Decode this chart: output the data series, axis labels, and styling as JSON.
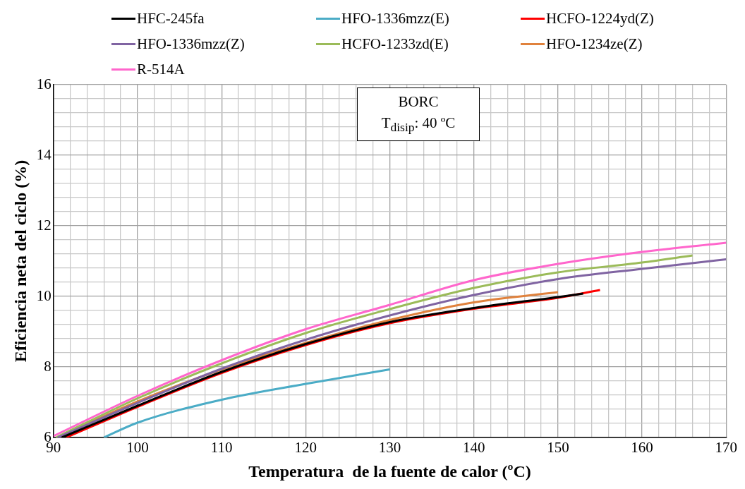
{
  "chart_data": {
    "type": "line",
    "xlabel": "Temperatura  de la fuente de calor (ºC)",
    "ylabel": "Eficiencia neta del ciclo (%)",
    "annotations": [
      "BORC",
      "T$_{disip}$:  40 ºC"
    ],
    "xlim": [
      90,
      170
    ],
    "ylim": [
      6,
      16
    ],
    "xticks": [
      90,
      {
        "value": 92,
        "label": null
      },
      {
        "value": 94,
        "label": null
      },
      {
        "value": 96,
        "label": null
      },
      {
        "value": 98,
        "label": null
      },
      100,
      {
        "value": 102,
        "label": null
      },
      {
        "value": 104,
        "label": null
      },
      {
        "value": 106,
        "label": null
      },
      {
        "value": 108,
        "label": null
      },
      110,
      {
        "value": 112,
        "label": null
      },
      {
        "value": 114,
        "label": null
      },
      {
        "value": 116,
        "label": null
      },
      {
        "value": 118,
        "label": null
      },
      120,
      {
        "value": 122,
        "label": null
      },
      {
        "value": 124,
        "label": null
      },
      {
        "value": 126,
        "label": null
      },
      {
        "value": 128,
        "label": null
      },
      130,
      {
        "value": 132,
        "label": null
      },
      {
        "value": 134,
        "label": null
      },
      {
        "value": 136,
        "label": null
      },
      {
        "value": 138,
        "label": null
      },
      140,
      {
        "value": 142,
        "label": null
      },
      {
        "value": 144,
        "label": null
      },
      {
        "value": 146,
        "label": null
      },
      {
        "value": 148,
        "label": null
      },
      150,
      {
        "value": 152,
        "label": null
      },
      {
        "value": 154,
        "label": null
      },
      {
        "value": 156,
        "label": null
      },
      {
        "value": 158,
        "label": null
      },
      160,
      {
        "value": 162,
        "label": null
      },
      {
        "value": 164,
        "label": null
      },
      {
        "value": 166,
        "label": null
      },
      {
        "value": 168,
        "label": null
      },
      170
    ],
    "yticks": [
      6,
      {
        "value": 6.4,
        "label": null
      },
      {
        "value": 6.8,
        "label": null
      },
      {
        "value": 7.2,
        "label": null
      },
      {
        "value": 7.6,
        "label": null
      },
      8,
      {
        "value": 8.4,
        "label": null
      },
      {
        "value": 8.8,
        "label": null
      },
      {
        "value": 9.2,
        "label": null
      },
      {
        "value": 9.6,
        "label": null
      },
      10,
      {
        "value": 10.4,
        "label": null
      },
      {
        "value": 10.8,
        "label": null
      },
      {
        "value": 11.2,
        "label": null
      },
      {
        "value": 11.6,
        "label": null
      },
      12,
      {
        "value": 12.4,
        "label": null
      },
      {
        "value": 12.8,
        "label": null
      },
      {
        "value": 13.2,
        "label": null
      },
      {
        "value": 13.6,
        "label": null
      },
      14,
      {
        "value": 14.4,
        "label": null
      },
      {
        "value": 14.8,
        "label": null
      },
      {
        "value": 15.2,
        "label": null
      },
      {
        "value": 15.6,
        "label": null
      },
      16
    ],
    "grid": true,
    "legend": "top",
    "marker": "none",
    "line_style": "solid",
    "series": [
      {
        "name": "HFC-245fa",
        "color": "#000000",
        "x": [
          91,
          100,
          110,
          120,
          130,
          140,
          150,
          153
        ],
        "values": [
          6.0,
          6.9,
          7.86,
          8.65,
          9.27,
          9.67,
          9.98,
          10.08
        ]
      },
      {
        "name": "HFO-1336mzz(E)",
        "color": "#4bacc6",
        "x": [
          96,
          100,
          110,
          120,
          130
        ],
        "values": [
          6.0,
          6.42,
          7.07,
          7.52,
          7.93
        ]
      },
      {
        "name": "HCFO-1224yd(Z)",
        "color": "#ff0000",
        "x": [
          91.5,
          100,
          110,
          120,
          130,
          140,
          150,
          155
        ],
        "values": [
          6.0,
          6.87,
          7.83,
          8.62,
          9.24,
          9.65,
          9.96,
          10.18
        ]
      },
      {
        "name": "HFO-1336mzz(Z)",
        "color": "#8064a2",
        "x": [
          90.5,
          100,
          110,
          120,
          130,
          140,
          150,
          160,
          170
        ],
        "values": [
          6.0,
          6.98,
          7.95,
          8.77,
          9.46,
          10.04,
          10.49,
          10.78,
          11.05
        ]
      },
      {
        "name": "HCFO-1233zd(E)",
        "color": "#9bbb59",
        "x": [
          90.3,
          100,
          110,
          120,
          130,
          140,
          150,
          160,
          166
        ],
        "values": [
          6.0,
          7.11,
          8.1,
          8.96,
          9.64,
          10.24,
          10.68,
          10.96,
          11.16
        ]
      },
      {
        "name": "HFO-1234ze(Z)",
        "color": "#e0823d",
        "x": [
          90.5,
          100,
          110,
          120,
          130,
          140,
          150
        ],
        "values": [
          6.0,
          7.02,
          7.93,
          8.68,
          9.33,
          9.83,
          10.12
        ]
      },
      {
        "name": "R-514A",
        "color": "#ff66cc",
        "x": [
          90,
          100,
          110,
          120,
          130,
          140,
          150,
          160,
          170
        ],
        "values": [
          6.04,
          7.18,
          8.19,
          9.07,
          9.76,
          10.46,
          10.92,
          11.26,
          11.52
        ]
      }
    ]
  }
}
